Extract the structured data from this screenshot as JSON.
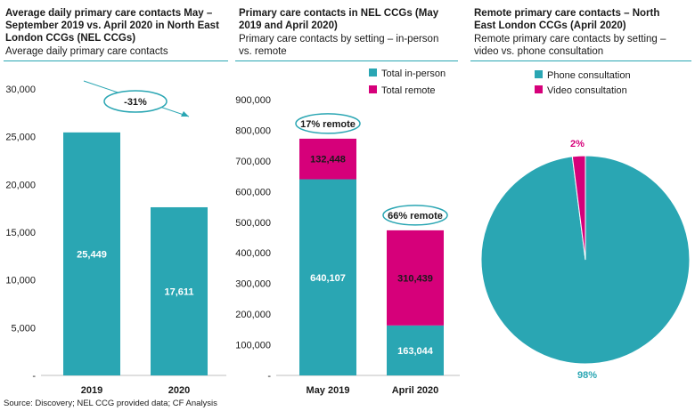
{
  "colors": {
    "teal": "#2aa6b3",
    "magenta": "#d6007a"
  },
  "panels": [
    {
      "title": "Average daily primary care contacts May – September 2019 vs. April 2020 in North East London CCGs (NEL CCGs)",
      "subtitle": "Average daily primary care contacts"
    },
    {
      "title": "Primary care contacts in NEL CCGs (May 2019 and April 2020)",
      "subtitle": "Primary care contacts by setting – in-person vs. remote"
    },
    {
      "title": "Remote primary care contacts – North East London CCGs (April 2020)",
      "subtitle": "Remote primary care contacts by setting – video vs. phone consultation"
    }
  ],
  "source": "Source: Discovery; NEL CCG provided data;  CF Analysis",
  "chart_data": [
    {
      "type": "bar",
      "categories": [
        "2019",
        "2020"
      ],
      "values": [
        25449,
        17611
      ],
      "value_labels": [
        "25,449",
        "17,611"
      ],
      "ylim": [
        0,
        30000
      ],
      "yticks": [
        "-",
        "5,000",
        "10,000",
        "15,000",
        "20,000",
        "25,000",
        "30,000"
      ],
      "annotation": "-31%",
      "color": "#2aa6b3"
    },
    {
      "type": "bar",
      "stacked": true,
      "categories": [
        "May 2019",
        "April 2020"
      ],
      "series": [
        {
          "name": "Total in-person",
          "values": [
            640107,
            163044
          ],
          "labels": [
            "640,107",
            "163,044"
          ],
          "color": "#2aa6b3"
        },
        {
          "name": "Total remote",
          "values": [
            132448,
            310439
          ],
          "labels": [
            "132,448",
            "310,439"
          ],
          "color": "#d6007a"
        }
      ],
      "ylim": [
        0,
        900000
      ],
      "yticks": [
        "-",
        "100,000",
        "200,000",
        "300,000",
        "400,000",
        "500,000",
        "600,000",
        "700,000",
        "800,000",
        "900,000"
      ],
      "annotations": [
        "17% remote",
        "66% remote"
      ],
      "legend": "top-right"
    },
    {
      "type": "pie",
      "slices": [
        {
          "name": "Phone consultation",
          "value": 98,
          "label": "98%",
          "color": "#2aa6b3"
        },
        {
          "name": "Video consultation",
          "value": 2,
          "label": "2%",
          "color": "#d6007a"
        }
      ],
      "legend": "top"
    }
  ]
}
